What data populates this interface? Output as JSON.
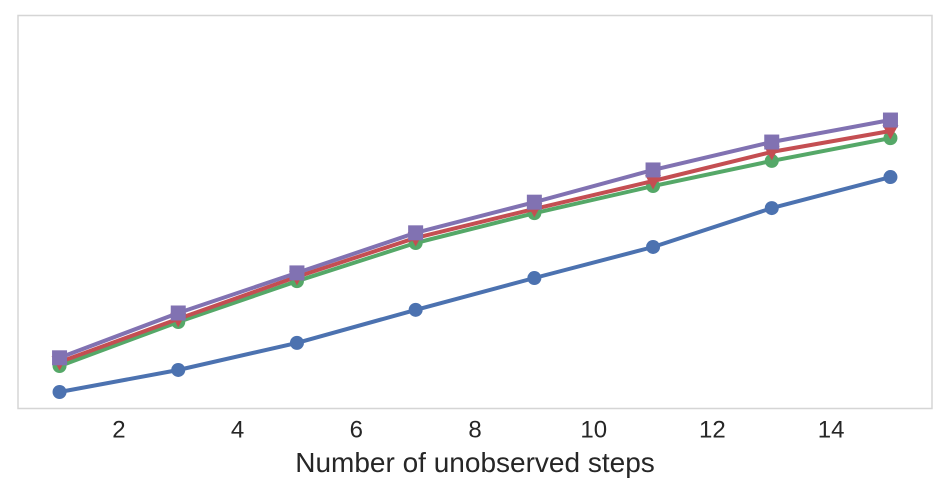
{
  "chart_data": {
    "type": "line",
    "title": "",
    "xlabel": "Number of unobserved steps",
    "ylabel": "",
    "x": [
      1,
      3,
      5,
      7,
      9,
      11,
      13,
      15
    ],
    "xticks": [
      "2",
      "4",
      "6",
      "8",
      "10",
      "12",
      "14"
    ],
    "xlim": [
      0.3,
      15.7
    ],
    "ylim": [
      0,
      1
    ],
    "grid": false,
    "legend_position": "none",
    "y_ticks_visible": false,
    "series": [
      {
        "name": "blue-circle-series",
        "color": "#4C72B0",
        "marker": "circle",
        "values": [
          0.042,
          0.098,
          0.167,
          0.251,
          0.332,
          0.411,
          0.51,
          0.589
        ]
      },
      {
        "name": "green-circle-series",
        "color": "#55A868",
        "marker": "circle",
        "values": [
          0.108,
          0.22,
          0.324,
          0.421,
          0.497,
          0.566,
          0.63,
          0.688
        ]
      },
      {
        "name": "red-triangle-series",
        "color": "#C44E52",
        "marker": "triangle-down",
        "values": [
          0.118,
          0.228,
          0.335,
          0.434,
          0.508,
          0.579,
          0.653,
          0.706
        ]
      },
      {
        "name": "purple-square-series",
        "color": "#8172B2",
        "marker": "square",
        "values": [
          0.129,
          0.243,
          0.345,
          0.447,
          0.525,
          0.607,
          0.678,
          0.734
        ]
      }
    ],
    "styles": {
      "line_width": 4,
      "marker_size": 14,
      "frame_color": "#d5d5d5",
      "text_color": "#262626",
      "tick_font_size": 24,
      "background": "#ffffff"
    }
  }
}
